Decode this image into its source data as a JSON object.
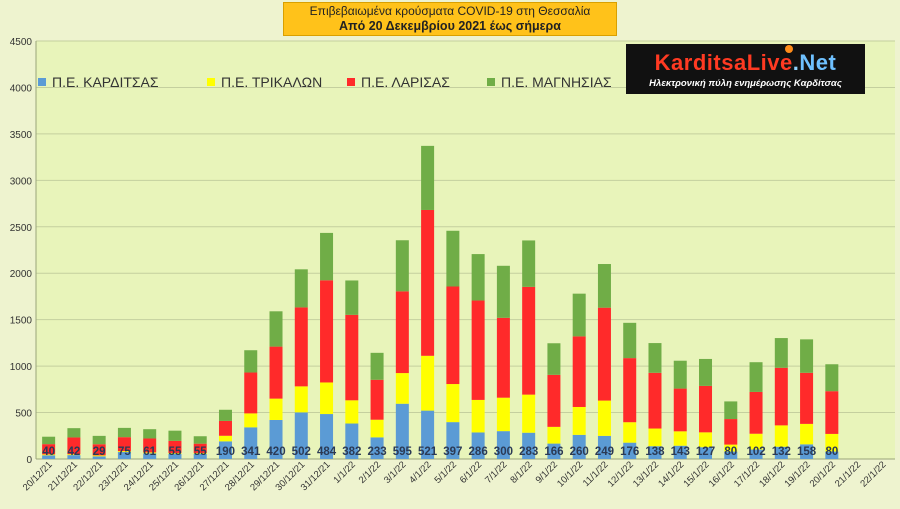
{
  "header": {
    "title_line1": "Επιβεβαιωμένα κρούσματα COVID-19 στη Θεσσαλία",
    "title_line2": "Από 20 Δεκεμβρίου 2021 έως σήμερα"
  },
  "logo": {
    "name_part1": "KarditsaLive",
    "name_part2": ".",
    "name_part3": "Net",
    "tagline": "Ηλεκτρονική πύλη ενημέρωσης Καρδίτσας"
  },
  "colors": {
    "background": "#eef3cf",
    "plot_area": "#e8f4ba",
    "grid": "#c4cf9e",
    "karditsa": "#5b9bd5",
    "trikala": "#ffff00",
    "larisa": "#ff2a2a",
    "magnisia": "#70ad47",
    "title_box": "#ffc21a",
    "logo_bg": "#111111"
  },
  "chart_data": {
    "type": "bar",
    "stacked": true,
    "categories": [
      "20/12/21",
      "21/12/21",
      "22/12/21",
      "23/12/21",
      "24/12/21",
      "25/12/21",
      "26/12/21",
      "27/12/21",
      "28/12/21",
      "29/12/21",
      "30/12/21",
      "31/12/21",
      "1/1/22",
      "2/1/22",
      "3/1/22",
      "4/1/22",
      "5/1/22",
      "6/1/22",
      "7/1/22",
      "8/1/22",
      "9/1/22",
      "10/1/22",
      "11/1/22",
      "12/1/22",
      "13/1/22",
      "14/1/22",
      "15/1/22",
      "16/1/22",
      "17/1/22",
      "18/1/22",
      "19/1/22",
      "20/1/22",
      "21/1/22",
      "22/1/22"
    ],
    "series": [
      {
        "name": "Π.Ε. ΚΑΡΔΙΤΣΑΣ",
        "color": "#5b9bd5",
        "values": [
          40,
          42,
          29,
          75,
          61,
          55,
          55,
          190,
          341,
          420,
          502,
          484,
          382,
          233,
          595,
          521,
          397,
          286,
          300,
          283,
          166,
          260,
          249,
          176,
          138,
          143,
          127,
          80,
          102,
          132,
          158,
          80,
          null,
          null
        ]
      },
      {
        "name": "Π.Ε. ΤΡΙΚΑΛΩΝ",
        "color": "#ffff00",
        "values": [
          10,
          10,
          10,
          10,
          10,
          10,
          10,
          60,
          150,
          230,
          280,
          340,
          250,
          190,
          330,
          590,
          410,
          350,
          360,
          410,
          180,
          300,
          380,
          220,
          190,
          155,
          160,
          75,
          170,
          230,
          220,
          190,
          null,
          null
        ]
      },
      {
        "name": "Π.Ε. ΛΑΡΙΣΑΣ",
        "color": "#ff2a2a",
        "values": [
          110,
          180,
          120,
          150,
          150,
          130,
          100,
          160,
          440,
          560,
          850,
          1100,
          920,
          430,
          880,
          1570,
          1050,
          1070,
          860,
          1160,
          560,
          760,
          1000,
          690,
          600,
          460,
          500,
          275,
          450,
          620,
          550,
          460,
          null,
          null
        ]
      },
      {
        "name": "Π.Ε. ΜΑΓΝΗΣΙΑΣ",
        "color": "#70ad47",
        "values": [
          80,
          100,
          90,
          100,
          100,
          110,
          80,
          120,
          240,
          380,
          410,
          510,
          370,
          290,
          550,
          690,
          600,
          500,
          560,
          500,
          340,
          460,
          470,
          380,
          320,
          300,
          290,
          190,
          320,
          320,
          360,
          290,
          null,
          null
        ]
      }
    ],
    "data_labels": [
      40,
      42,
      29,
      75,
      61,
      55,
      55,
      190,
      341,
      420,
      502,
      484,
      382,
      233,
      595,
      521,
      397,
      286,
      300,
      283,
      166,
      260,
      249,
      176,
      138,
      143,
      127,
      80,
      102,
      132,
      158,
      80,
      null,
      null
    ],
    "y_ticks": [
      0,
      500,
      1000,
      1500,
      2000,
      2500,
      3000,
      3500,
      4000,
      4500
    ],
    "ylim": [
      0,
      4500
    ],
    "grid": true,
    "legend_position": "top-left"
  }
}
